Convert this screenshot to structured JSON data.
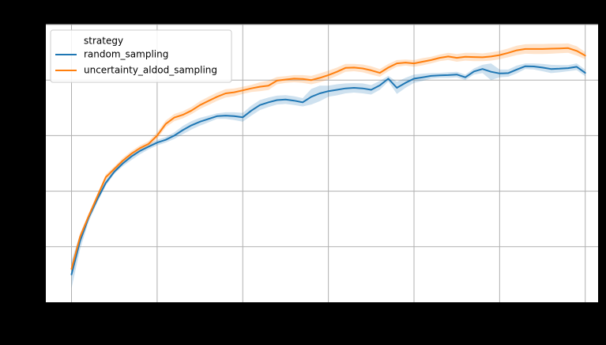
{
  "chart_data": {
    "type": "line",
    "title": "",
    "xlabel": "",
    "ylabel": "",
    "x": [
      0,
      1,
      2,
      3,
      4,
      5,
      6,
      7,
      8,
      9,
      10,
      11,
      12,
      13,
      14,
      15,
      16,
      17,
      18,
      19,
      20,
      21,
      22,
      23,
      24,
      25,
      26,
      27,
      28,
      29,
      30,
      31,
      32,
      33,
      34,
      35,
      36,
      37,
      38,
      39,
      40,
      41,
      42,
      43,
      44,
      45,
      46,
      47,
      48,
      49,
      50,
      51,
      52,
      53,
      54,
      55,
      56,
      57,
      58,
      59,
      60
    ],
    "xlim": [
      -3,
      61.5
    ],
    "ylim": [
      0,
      1
    ],
    "grid": true,
    "legend": {
      "title": "strategy",
      "placement": "upper-left"
    },
    "series": [
      {
        "name": "random_sampling",
        "color": "#1f77b4",
        "values": [
          0.1,
          0.22,
          0.305,
          0.37,
          0.43,
          0.47,
          0.5,
          0.525,
          0.545,
          0.56,
          0.575,
          0.585,
          0.6,
          0.62,
          0.637,
          0.65,
          0.66,
          0.67,
          0.672,
          0.67,
          0.666,
          0.69,
          0.71,
          0.72,
          0.728,
          0.73,
          0.726,
          0.72,
          0.74,
          0.752,
          0.76,
          0.765,
          0.77,
          0.772,
          0.77,
          0.765,
          0.781,
          0.805,
          0.772,
          0.79,
          0.805,
          0.81,
          0.815,
          0.817,
          0.818,
          0.82,
          0.81,
          0.831,
          0.84,
          0.83,
          0.824,
          0.825,
          0.838,
          0.85,
          0.849,
          0.845,
          0.84,
          0.841,
          0.843,
          0.848,
          0.826
        ],
        "lower": [
          0.05,
          0.19,
          0.29,
          0.358,
          0.42,
          0.462,
          0.49,
          0.512,
          0.533,
          0.55,
          0.565,
          0.575,
          0.588,
          0.605,
          0.622,
          0.636,
          0.648,
          0.66,
          0.66,
          0.656,
          0.65,
          0.672,
          0.692,
          0.703,
          0.712,
          0.714,
          0.71,
          0.705,
          0.712,
          0.724,
          0.74,
          0.745,
          0.752,
          0.755,
          0.752,
          0.748,
          0.765,
          0.795,
          0.75,
          0.772,
          0.79,
          0.797,
          0.805,
          0.808,
          0.808,
          0.81,
          0.8,
          0.82,
          0.825,
          0.8,
          0.81,
          0.812,
          0.824,
          0.84,
          0.838,
          0.832,
          0.825,
          0.828,
          0.832,
          0.836,
          0.814
        ],
        "upper": [
          0.15,
          0.245,
          0.318,
          0.382,
          0.44,
          0.478,
          0.51,
          0.538,
          0.557,
          0.57,
          0.585,
          0.595,
          0.612,
          0.635,
          0.652,
          0.664,
          0.672,
          0.68,
          0.684,
          0.684,
          0.682,
          0.708,
          0.728,
          0.737,
          0.744,
          0.746,
          0.742,
          0.735,
          0.768,
          0.78,
          0.78,
          0.785,
          0.788,
          0.789,
          0.788,
          0.782,
          0.797,
          0.815,
          0.794,
          0.808,
          0.82,
          0.823,
          0.825,
          0.826,
          0.828,
          0.83,
          0.82,
          0.842,
          0.855,
          0.86,
          0.838,
          0.838,
          0.852,
          0.86,
          0.86,
          0.858,
          0.855,
          0.854,
          0.854,
          0.86,
          0.838
        ]
      },
      {
        "name": "uncertainty_aldod_sampling",
        "color": "#ff7f0e",
        "values": [
          0.12,
          0.235,
          0.31,
          0.38,
          0.45,
          0.48,
          0.51,
          0.535,
          0.555,
          0.57,
          0.6,
          0.642,
          0.665,
          0.675,
          0.69,
          0.71,
          0.725,
          0.74,
          0.752,
          0.756,
          0.763,
          0.77,
          0.776,
          0.78,
          0.798,
          0.802,
          0.805,
          0.804,
          0.8,
          0.808,
          0.818,
          0.83,
          0.844,
          0.845,
          0.842,
          0.835,
          0.826,
          0.845,
          0.86,
          0.863,
          0.86,
          0.866,
          0.872,
          0.88,
          0.885,
          0.88,
          0.884,
          0.883,
          0.882,
          0.885,
          0.89,
          0.898,
          0.907,
          0.912,
          0.912,
          0.912,
          0.913,
          0.914,
          0.915,
          0.905,
          0.888
        ],
        "lower": [
          0.105,
          0.222,
          0.3,
          0.37,
          0.44,
          0.471,
          0.5,
          0.525,
          0.545,
          0.56,
          0.588,
          0.63,
          0.652,
          0.662,
          0.677,
          0.696,
          0.71,
          0.725,
          0.737,
          0.742,
          0.75,
          0.757,
          0.76,
          0.764,
          0.785,
          0.79,
          0.792,
          0.79,
          0.785,
          0.792,
          0.802,
          0.815,
          0.83,
          0.832,
          0.828,
          0.82,
          0.812,
          0.832,
          0.848,
          0.852,
          0.848,
          0.853,
          0.86,
          0.868,
          0.872,
          0.866,
          0.87,
          0.868,
          0.868,
          0.87,
          0.875,
          0.882,
          0.89,
          0.895,
          0.894,
          0.894,
          0.895,
          0.897,
          0.898,
          0.888,
          0.875
        ],
        "upper": [
          0.135,
          0.248,
          0.32,
          0.39,
          0.46,
          0.489,
          0.52,
          0.545,
          0.565,
          0.58,
          0.612,
          0.654,
          0.678,
          0.688,
          0.703,
          0.724,
          0.74,
          0.755,
          0.767,
          0.77,
          0.776,
          0.783,
          0.792,
          0.798,
          0.811,
          0.814,
          0.818,
          0.818,
          0.815,
          0.824,
          0.834,
          0.845,
          0.858,
          0.858,
          0.856,
          0.85,
          0.84,
          0.858,
          0.872,
          0.874,
          0.872,
          0.879,
          0.884,
          0.892,
          0.898,
          0.894,
          0.898,
          0.898,
          0.896,
          0.9,
          0.905,
          0.914,
          0.924,
          0.929,
          0.93,
          0.93,
          0.931,
          0.931,
          0.932,
          0.922,
          0.901
        ]
      }
    ]
  }
}
